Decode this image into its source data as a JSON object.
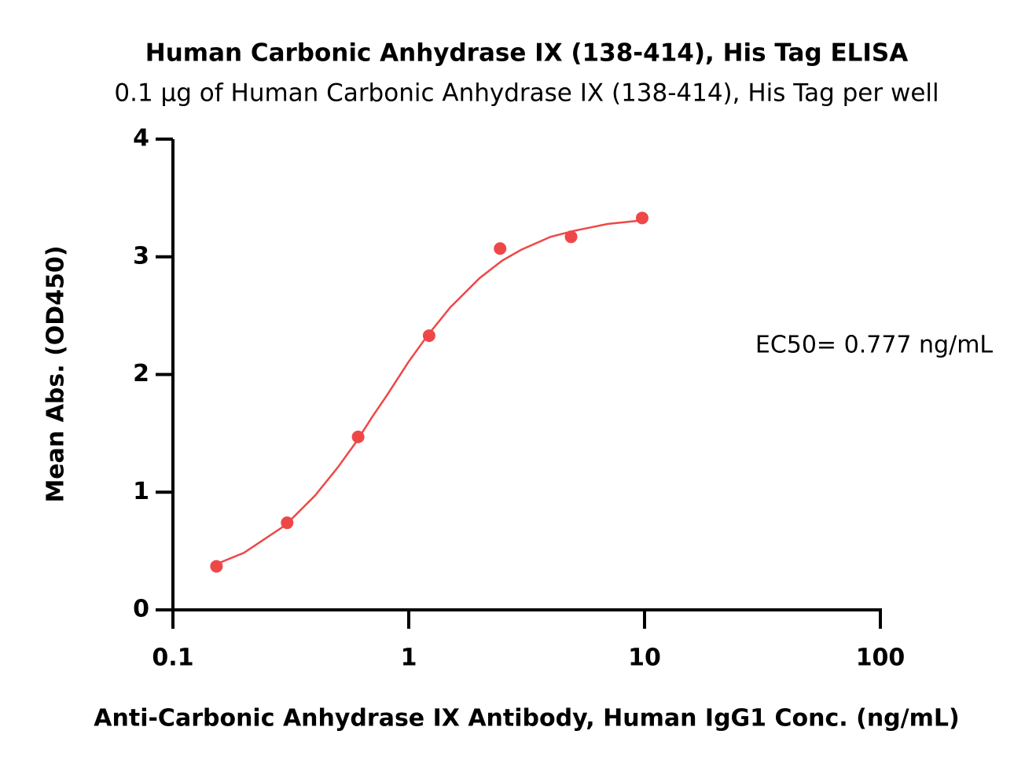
{
  "chart_data": {
    "type": "scatter",
    "title": "Human Carbonic Anhydrase IX (138-414), His Tag ELISA",
    "subtitle": "0.1 μg of Human Carbonic Anhydrase IX (138-414), His Tag per well",
    "x_label": "Anti-Carbonic Anhydrase IX Antibody, Human IgG1 Conc. (ng/mL)",
    "y_label": "Mean Abs. (OD450)",
    "annotation": "EC50= 0.777 ng/mL",
    "x": [
      0.153,
      0.305,
      0.61,
      1.22,
      2.44,
      4.88,
      9.77
    ],
    "values": [
      0.37,
      0.74,
      1.47,
      2.33,
      3.07,
      3.17,
      3.33
    ],
    "color": "#ef4747",
    "curve": {
      "x": [
        0.153,
        0.2,
        0.3,
        0.4,
        0.5,
        0.6,
        0.7,
        0.8,
        1,
        1.2,
        1.5,
        2,
        2.5,
        3,
        4,
        5,
        7,
        9.77
      ],
      "values": [
        0.39,
        0.485,
        0.72,
        0.97,
        1.21,
        1.43,
        1.64,
        1.81,
        2.11,
        2.33,
        2.57,
        2.82,
        2.97,
        3.06,
        3.17,
        3.22,
        3.28,
        3.31
      ]
    },
    "xscale": "log",
    "xlim": [
      0.1,
      100
    ],
    "xticks": [
      0.1,
      1,
      10,
      100
    ],
    "ylim": [
      0,
      4
    ],
    "yticks": [
      0,
      1,
      2,
      3,
      4
    ],
    "grid": false
  }
}
